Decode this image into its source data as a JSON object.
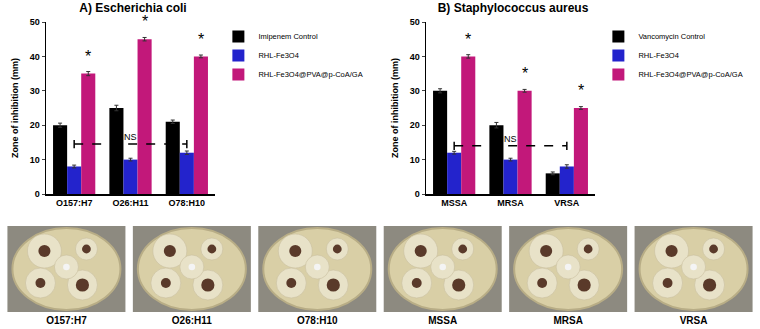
{
  "chart_data": [
    {
      "type": "bar",
      "title": "A) Escherichia coli",
      "y_label": "Zone of inhibition (mm)",
      "categories": [
        "O157:H7",
        "O26:H11",
        "O78:H10"
      ],
      "series": [
        {
          "name": "Imipenem Control",
          "color": "#000000",
          "values": [
            20,
            25,
            21
          ],
          "errors": [
            0.6,
            0.8,
            0.5
          ]
        },
        {
          "name": "RHL-Fe3O4",
          "color": "#2323cc",
          "values": [
            8,
            10,
            12
          ],
          "errors": [
            0.4,
            0.4,
            0.5
          ]
        },
        {
          "name": "RHL-Fe3O4@PVA@p-CoA/GA",
          "color": "#c2187a",
          "values": [
            35,
            45,
            40
          ],
          "errors": [
            0.6,
            0.5,
            0.4
          ]
        }
      ],
      "ylim": [
        0,
        50
      ],
      "yticks": [
        0,
        10,
        20,
        30,
        40,
        50
      ],
      "grid": false,
      "legend": "right",
      "annotations": [
        {
          "text": "*",
          "category": "O157:H7",
          "series": "RHL-Fe3O4@PVA@p-CoA/GA",
          "y": 37
        },
        {
          "text": "*",
          "category": "O26:H11",
          "series": "RHL-Fe3O4@PVA@p-CoA/GA",
          "y": 47
        },
        {
          "text": "*",
          "category": "O78:H10",
          "series": "RHL-Fe3O4@PVA@p-CoA/GA",
          "y": 42
        },
        {
          "text": "NS",
          "x0": "O157:H7",
          "x1": "O78:H10",
          "series": "RHL-Fe3O4",
          "y": 14.5,
          "line_style": "dashed"
        }
      ]
    },
    {
      "type": "bar",
      "title": "B) Staphylococcus aureus",
      "y_label": "Zone of inhibition (mm)",
      "categories": [
        "MSSA",
        "MRSA",
        "VRSA"
      ],
      "series": [
        {
          "name": "Vancomycin Control",
          "color": "#000000",
          "values": [
            30,
            20,
            6
          ],
          "errors": [
            0.6,
            0.8,
            0.4
          ]
        },
        {
          "name": "RHL-Fe3O4",
          "color": "#2323cc",
          "values": [
            12,
            10,
            8
          ],
          "errors": [
            0.4,
            0.4,
            0.5
          ]
        },
        {
          "name": "RHL-Fe3O4@PVA@p-CoA/GA",
          "color": "#c2187a",
          "values": [
            40,
            30,
            25
          ],
          "errors": [
            0.5,
            0.4,
            0.4
          ]
        }
      ],
      "ylim": [
        0,
        50
      ],
      "yticks": [
        0,
        10,
        20,
        30,
        40,
        50
      ],
      "grid": false,
      "legend": "right",
      "annotations": [
        {
          "text": "*",
          "category": "MSSA",
          "series": "RHL-Fe3O4@PVA@p-CoA/GA",
          "y": 42
        },
        {
          "text": "*",
          "category": "MRSA",
          "series": "RHL-Fe3O4@PVA@p-CoA/GA",
          "y": 32
        },
        {
          "text": "*",
          "category": "VRSA",
          "series": "RHL-Fe3O4@PVA@p-CoA/GA",
          "y": 27
        },
        {
          "text": "NS",
          "x0": "MSSA",
          "x1": "VRSA",
          "series": "RHL-Fe3O4",
          "y": 14,
          "line_style": "dashed"
        }
      ]
    }
  ],
  "plates": {
    "labels": [
      "O157:H7",
      "O26:H11",
      "O78:H10",
      "MSSA",
      "MRSA",
      "VRSA"
    ]
  }
}
